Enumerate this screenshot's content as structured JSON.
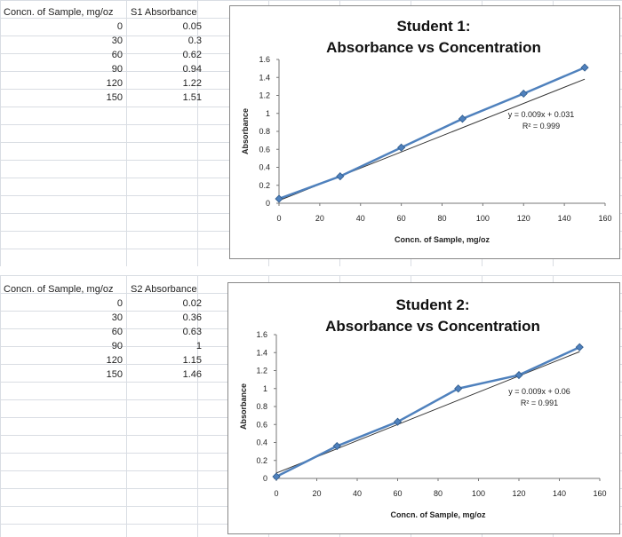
{
  "sheet1": {
    "header_x": "Concn. of Sample, mg/oz",
    "header_y": "S1 Absorbance",
    "rows": [
      [
        "0",
        "0.05"
      ],
      [
        "30",
        "0.3"
      ],
      [
        "60",
        "0.62"
      ],
      [
        "90",
        "0.94"
      ],
      [
        "120",
        "1.22"
      ],
      [
        "150",
        "1.51"
      ]
    ]
  },
  "sheet2": {
    "header_x": "Concn. of Sample, mg/oz",
    "header_y": "S2 Absorbance",
    "rows": [
      [
        "0",
        "0.02"
      ],
      [
        "30",
        "0.36"
      ],
      [
        "60",
        "0.63"
      ],
      [
        "90",
        "1"
      ],
      [
        "120",
        "1.15"
      ],
      [
        "150",
        "1.46"
      ]
    ]
  },
  "chart_data": [
    {
      "type": "scatter",
      "title_line1": "Student 1:",
      "title_line2": "Absorbance vs Concentration",
      "xlabel": "Concn. of Sample, mg/oz",
      "ylabel": "Absorbance",
      "xlim": [
        0,
        160
      ],
      "ylim": [
        0,
        1.6
      ],
      "x_ticks": [
        "0",
        "20",
        "40",
        "60",
        "80",
        "100",
        "120",
        "140",
        "160"
      ],
      "y_ticks": [
        "0",
        "0.2",
        "0.4",
        "0.6",
        "0.8",
        "1",
        "1.2",
        "1.4",
        "1.6"
      ],
      "x": [
        0,
        30,
        60,
        90,
        120,
        150
      ],
      "y": [
        0.05,
        0.3,
        0.62,
        0.94,
        1.22,
        1.51
      ],
      "trendline": {
        "slope": 0.009,
        "intercept": 0.031
      },
      "equation": "y = 0.009x + 0.031",
      "r2": "R² = 0.999",
      "series_color": "#4f81bd",
      "trend_color": "#333333"
    },
    {
      "type": "scatter",
      "title_line1": "Student 2:",
      "title_line2": "Absorbance vs Concentration",
      "xlabel": "Concn. of Sample, mg/oz",
      "ylabel": "Absorbance",
      "xlim": [
        0,
        160
      ],
      "ylim": [
        0,
        1.6
      ],
      "x_ticks": [
        "0",
        "20",
        "40",
        "60",
        "80",
        "100",
        "120",
        "140",
        "160"
      ],
      "y_ticks": [
        "0",
        "0.2",
        "0.4",
        "0.6",
        "0.8",
        "1",
        "1.2",
        "1.4",
        "1.6"
      ],
      "x": [
        0,
        30,
        60,
        90,
        120,
        150
      ],
      "y": [
        0.02,
        0.36,
        0.63,
        1,
        1.15,
        1.46
      ],
      "trendline": {
        "slope": 0.009,
        "intercept": 0.06
      },
      "equation": "y = 0.009x + 0.06",
      "r2": "R² = 0.991",
      "series_color": "#4f81bd",
      "trend_color": "#333333"
    }
  ]
}
